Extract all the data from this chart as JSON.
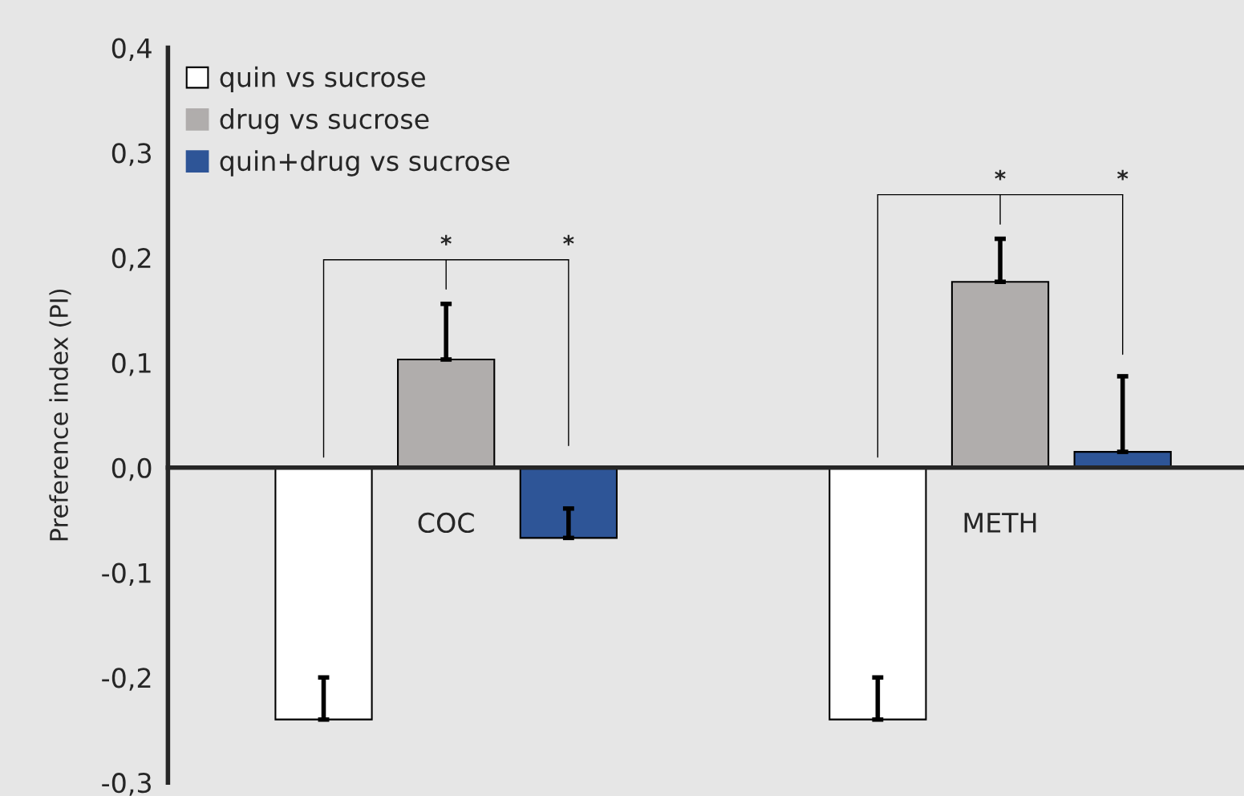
{
  "chart_data": {
    "type": "bar",
    "ylabel": "Preference index (PI)",
    "categories": [
      "COC",
      "METH"
    ],
    "series": [
      {
        "name": "quin vs sucrose",
        "color": "#ffffff",
        "values": [
          -0.24,
          -0.24
        ],
        "errors": [
          [
            -0.24,
            -0.2
          ],
          [
            -0.24,
            -0.2
          ]
        ]
      },
      {
        "name": "drug vs sucrose",
        "color": "#b0adac",
        "values": [
          0.103,
          0.177
        ],
        "errors": [
          [
            0.103,
            0.156
          ],
          [
            0.177,
            0.218
          ]
        ]
      },
      {
        "name": "quin+drug vs sucrose",
        "color": "#2e5597",
        "values": [
          -0.067,
          0.015
        ],
        "errors": [
          [
            -0.067,
            -0.039
          ],
          [
            0.015,
            0.087
          ]
        ]
      }
    ],
    "ylim": [
      -0.3,
      0.4
    ],
    "yticks": [
      {
        "value": -0.3,
        "label": "-0,3"
      },
      {
        "value": -0.2,
        "label": "-0,2"
      },
      {
        "value": -0.1,
        "label": "-0,1"
      },
      {
        "value": 0.0,
        "label": "0,0"
      },
      {
        "value": 0.1,
        "label": "0,1"
      },
      {
        "value": 0.2,
        "label": "0,2"
      },
      {
        "value": 0.3,
        "label": "0,3"
      },
      {
        "value": 0.4,
        "label": "0,4"
      }
    ],
    "annotations": [
      "*",
      "*",
      "*",
      "*"
    ],
    "legend": "top left",
    "grid": false
  }
}
